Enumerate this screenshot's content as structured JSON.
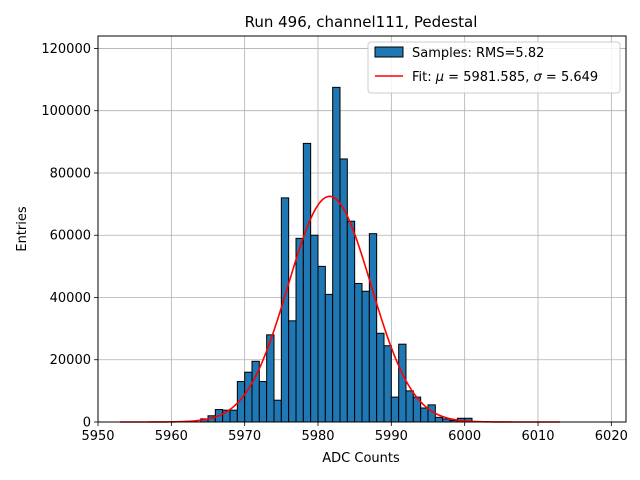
{
  "chart_data": {
    "type": "bar",
    "title": "Run 496, channel111, Pedestal",
    "xlabel": "ADC Counts",
    "ylabel": "Entries",
    "xlim": [
      5950,
      6022
    ],
    "ylim": [
      0,
      124000
    ],
    "xticks": [
      5950,
      5960,
      5970,
      5980,
      5990,
      6000,
      6010,
      6020
    ],
    "yticks": [
      0,
      20000,
      40000,
      60000,
      80000,
      100000,
      120000
    ],
    "grid": true,
    "legend_position": "top-right",
    "colors": {
      "bars": "#1f77b4",
      "bar_edge": "#000000",
      "fit": "#ff0000"
    },
    "histogram": {
      "name": "Samples: RMS=5.82",
      "bin_width": 1,
      "bin_starts": [
        5964,
        5965,
        5966,
        5967,
        5968,
        5969,
        5970,
        5971,
        5972,
        5973,
        5974,
        5975,
        5976,
        5977,
        5978,
        5979,
        5980,
        5981,
        5982,
        5983,
        5984,
        5985,
        5986,
        5987,
        5988,
        5989,
        5990,
        5991,
        5992,
        5993,
        5994,
        5995,
        5996,
        5997,
        5998,
        5999,
        6000
      ],
      "values": [
        1000,
        2000,
        4000,
        3800,
        3800,
        13000,
        16000,
        19500,
        13000,
        28000,
        7000,
        72000,
        32500,
        59000,
        89500,
        60000,
        50000,
        41000,
        107500,
        84500,
        64500,
        44500,
        42000,
        60500,
        28500,
        24500,
        8000,
        25000,
        10000,
        8000,
        4500,
        5500,
        1500,
        1000,
        500,
        1200,
        1200
      ]
    },
    "fit": {
      "name_prefix": "Fit: ",
      "mu_symbol": "μ",
      "mu": "5981.585",
      "sigma_symbol": "σ",
      "sigma": "5.649",
      "amplitude": 72500,
      "x_range": [
        5953,
        6013
      ]
    }
  }
}
